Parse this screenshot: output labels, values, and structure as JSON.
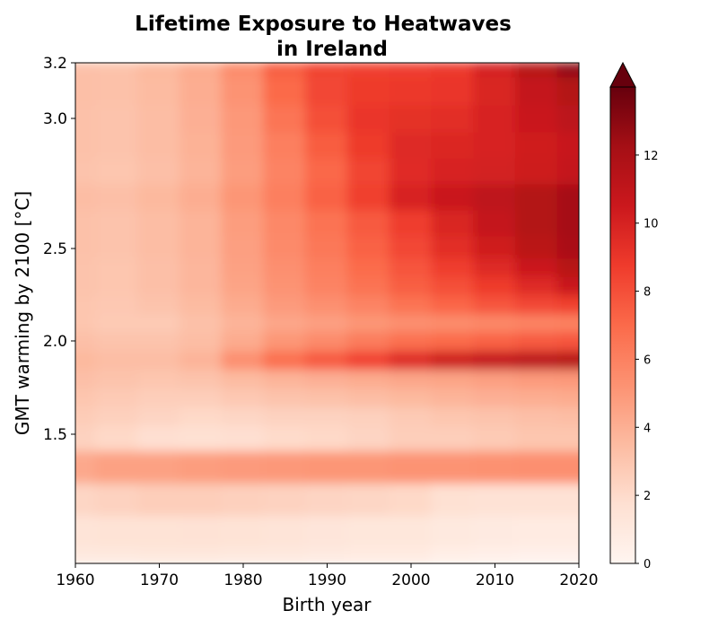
{
  "chart_data": {
    "type": "heatmap",
    "title_line1": "Lifetime Exposure to Heatwaves",
    "title_line2": "in Ireland",
    "xlabel": "Birth year",
    "ylabel": "GMT warming by 2100 [°C]",
    "x_ticks": [
      1960,
      1970,
      1980,
      1990,
      2000,
      2010,
      2020
    ],
    "y_ticks": [
      1.5,
      2.0,
      2.5,
      3.0,
      3.2
    ],
    "y_tick_labels": [
      "1.5",
      "2.0",
      "2.5",
      "3.0",
      "3.2"
    ],
    "xlim": [
      1960,
      2020
    ],
    "ylim": [
      1.1,
      3.2
    ],
    "y_scale": "nonlinear (upper range expanded)",
    "colormap": "Reds",
    "colorbar": {
      "ticks": [
        0,
        2,
        4,
        6,
        8,
        10,
        12
      ],
      "range": [
        0,
        14
      ],
      "extend": "max"
    },
    "birth_years": [
      1960,
      1965,
      1970,
      1975,
      1980,
      1985,
      1990,
      1995,
      2000,
      2005,
      2010,
      2015,
      2020
    ],
    "gmt_levels": [
      1.1,
      1.2,
      1.3,
      1.4,
      1.5,
      1.6,
      1.7,
      1.8,
      1.9,
      2.0,
      2.1,
      2.2,
      2.3,
      2.4,
      2.5,
      2.6,
      2.7,
      2.8,
      2.9,
      3.0,
      3.1,
      3.2
    ],
    "values": [
      [
        1.0,
        1.0,
        1.1,
        1.1,
        1.0,
        1.0,
        0.9,
        0.8,
        0.8,
        0.5,
        0.4,
        0.3,
        0.3
      ],
      [
        1.4,
        1.5,
        1.5,
        1.6,
        1.5,
        1.4,
        1.3,
        1.2,
        1.2,
        1.0,
        0.9,
        0.8,
        0.8
      ],
      [
        2.2,
        2.4,
        2.6,
        2.6,
        2.5,
        2.4,
        2.3,
        2.2,
        2.1,
        1.7,
        1.6,
        1.6,
        1.6
      ],
      [
        4.3,
        4.6,
        4.6,
        4.8,
        4.9,
        5.0,
        5.1,
        5.1,
        5.2,
        5.2,
        5.3,
        5.4,
        5.4
      ],
      [
        2.4,
        2.1,
        1.8,
        1.7,
        1.8,
        2.0,
        2.1,
        2.3,
        2.6,
        2.6,
        2.8,
        3.0,
        3.0
      ],
      [
        2.7,
        2.5,
        2.3,
        2.1,
        2.2,
        2.4,
        2.4,
        2.5,
        2.8,
        3.0,
        3.1,
        3.3,
        3.4
      ],
      [
        3.0,
        2.8,
        2.6,
        2.6,
        2.9,
        3.1,
        3.2,
        3.4,
        3.6,
        3.8,
        4.0,
        4.1,
        4.2
      ],
      [
        3.3,
        3.1,
        3.0,
        3.1,
        3.5,
        3.8,
        4.0,
        4.2,
        4.4,
        4.5,
        4.7,
        4.9,
        5.0
      ],
      [
        3.6,
        3.4,
        3.4,
        3.8,
        5.4,
        6.8,
        7.6,
        8.5,
        9.6,
        10.4,
        10.8,
        11.2,
        11.4
      ],
      [
        3.3,
        3.1,
        3.1,
        3.4,
        4.2,
        5.1,
        5.6,
        6.2,
        6.8,
        7.0,
        7.3,
        7.6,
        7.8
      ],
      [
        3.0,
        2.8,
        2.8,
        3.2,
        3.8,
        4.4,
        4.7,
        5.1,
        5.4,
        5.5,
        5.7,
        5.9,
        6.0
      ],
      [
        3.0,
        2.9,
        3.1,
        3.5,
        4.2,
        4.9,
        5.4,
        5.9,
        6.6,
        7.2,
        7.8,
        8.3,
        8.6
      ],
      [
        3.1,
        3.0,
        3.3,
        3.7,
        4.5,
        5.2,
        5.9,
        6.6,
        7.4,
        8.0,
        8.8,
        9.6,
        10.6
      ],
      [
        3.1,
        3.0,
        3.3,
        3.7,
        4.6,
        5.4,
        6.1,
        6.9,
        7.8,
        8.7,
        9.6,
        10.5,
        11.4
      ],
      [
        3.2,
        3.1,
        3.4,
        3.8,
        4.7,
        5.6,
        6.4,
        7.3,
        8.3,
        9.4,
        10.3,
        11.3,
        12.0
      ],
      [
        3.2,
        3.1,
        3.4,
        3.8,
        4.8,
        5.7,
        6.6,
        7.6,
        8.7,
        9.8,
        10.8,
        11.6,
        12.2
      ],
      [
        3.4,
        3.3,
        3.6,
        4.1,
        5.1,
        6.1,
        7.3,
        8.6,
        9.9,
        10.6,
        11.1,
        11.6,
        12.2
      ],
      [
        3.1,
        3.0,
        3.3,
        3.8,
        4.8,
        5.9,
        7.1,
        8.4,
        9.5,
        9.9,
        10.1,
        10.4,
        10.8
      ],
      [
        3.2,
        3.1,
        3.4,
        3.9,
        4.9,
        6.1,
        7.5,
        8.8,
        9.6,
        9.7,
        9.9,
        10.3,
        10.7
      ],
      [
        3.2,
        3.1,
        3.4,
        4.0,
        5.0,
        6.5,
        8.0,
        9.0,
        9.3,
        9.4,
        9.9,
        10.6,
        11.2
      ],
      [
        3.3,
        3.2,
        3.5,
        4.1,
        5.2,
        7.0,
        8.3,
        8.8,
        8.9,
        9.0,
        9.8,
        10.8,
        11.6
      ],
      [
        3.3,
        3.2,
        3.6,
        4.2,
        5.5,
        7.4,
        8.4,
        8.6,
        8.7,
        8.9,
        10.0,
        11.4,
        12.8
      ]
    ]
  }
}
